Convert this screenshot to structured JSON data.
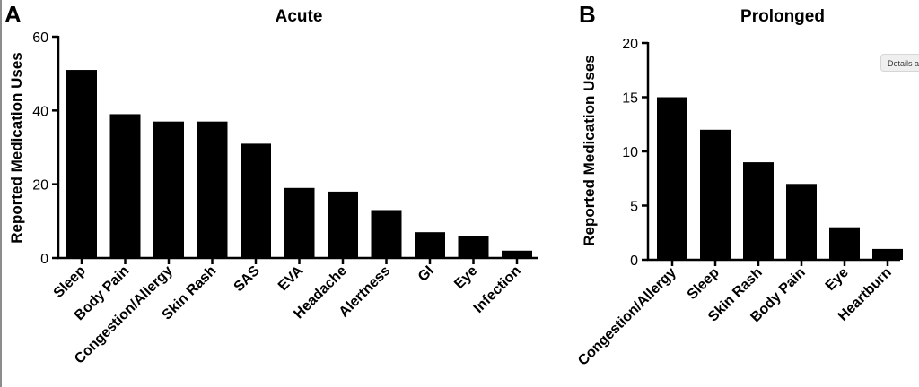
{
  "tooltip": {
    "label": "Details a"
  },
  "chart_data": [
    {
      "type": "bar",
      "panel_letter": "A",
      "title": "Acute",
      "ylabel": "Reported Medication Uses",
      "xlabel": "",
      "ylim": [
        0,
        60
      ],
      "yticks": [
        0,
        20,
        40,
        60
      ],
      "categories": [
        "Sleep",
        "Body Pain",
        "Congestion/Allergy",
        "Skin Rash",
        "SAS",
        "EVA",
        "Headache",
        "Alertness",
        "GI",
        "Eye",
        "Infection"
      ],
      "values": [
        51,
        39,
        37,
        37,
        31,
        19,
        18,
        13,
        7,
        6,
        2
      ],
      "bar_color": "#000000",
      "grid": false
    },
    {
      "type": "bar",
      "panel_letter": "B",
      "title": "Prolonged",
      "ylabel": "Reported Medication Uses",
      "xlabel": "",
      "ylim": [
        0,
        20
      ],
      "yticks": [
        0,
        5,
        10,
        15,
        20
      ],
      "categories": [
        "Congestion/Allergy",
        "Sleep",
        "Skin Rash",
        "Body Pain",
        "Eye",
        "Heartburn"
      ],
      "values": [
        15,
        12,
        9,
        7,
        3,
        1
      ],
      "bar_color": "#000000",
      "grid": false
    }
  ]
}
